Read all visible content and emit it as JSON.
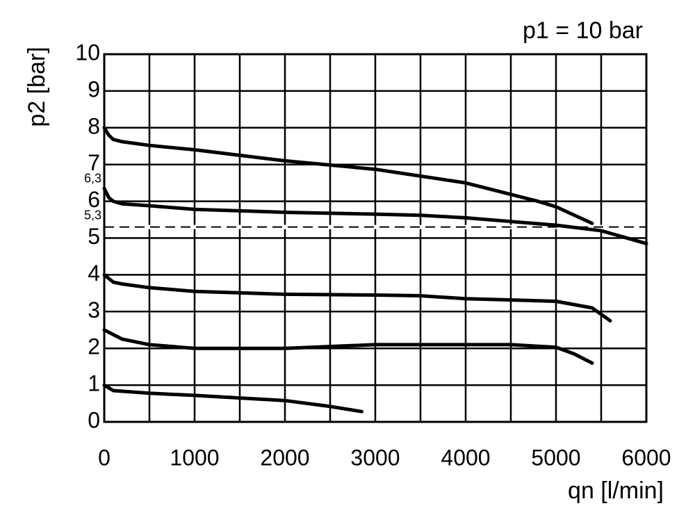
{
  "chart_data": {
    "type": "line",
    "title": "p1 = 10 bar",
    "x_label": "qn [l/min]",
    "y_label": "p2 [bar]",
    "xlim": [
      0,
      6000
    ],
    "ylim": [
      0,
      10
    ],
    "xticks": [
      0,
      1000,
      2000,
      3000,
      4000,
      5000,
      6000
    ],
    "x_minor_ticks": [
      500,
      1500,
      2500,
      3500,
      4500,
      5500
    ],
    "yticks": [
      0,
      1,
      2,
      3,
      4,
      5,
      6,
      7,
      8,
      9,
      10
    ],
    "grid": true,
    "reference_line": {
      "value": 5.3,
      "label": "5,3",
      "style": "dashed"
    },
    "annotations": [
      {
        "y": 6.3,
        "label": "6,3"
      }
    ],
    "series": [
      {
        "color": "#000000",
        "x": [
          0,
          50,
          100,
          200,
          500,
          1000,
          2000,
          3000,
          4000,
          4800,
          5000,
          5400
        ],
        "values": [
          8.0,
          7.8,
          7.68,
          7.62,
          7.52,
          7.4,
          7.1,
          6.87,
          6.5,
          6.0,
          5.85,
          5.4
        ]
      },
      {
        "color": "#000000",
        "x": [
          0,
          50,
          100,
          200,
          500,
          1000,
          2000,
          3000,
          3500,
          4000,
          4500,
          5000,
          5500,
          6000
        ],
        "values": [
          6.35,
          6.1,
          6.0,
          5.93,
          5.88,
          5.78,
          5.7,
          5.65,
          5.62,
          5.55,
          5.45,
          5.35,
          5.2,
          4.85
        ]
      },
      {
        "color": "#000000",
        "x": [
          0,
          100,
          200,
          500,
          1000,
          2000,
          3000,
          3500,
          4000,
          5000,
          5400,
          5600
        ],
        "values": [
          4.0,
          3.8,
          3.75,
          3.65,
          3.55,
          3.47,
          3.45,
          3.43,
          3.35,
          3.28,
          3.1,
          2.75
        ]
      },
      {
        "color": "#000000",
        "x": [
          0,
          200,
          500,
          1000,
          2000,
          3000,
          4000,
          4500,
          5000,
          5200,
          5400
        ],
        "values": [
          2.5,
          2.25,
          2.1,
          2.0,
          2.0,
          2.1,
          2.1,
          2.1,
          2.03,
          1.85,
          1.6
        ]
      },
      {
        "color": "#000000",
        "x": [
          0,
          100,
          500,
          1000,
          2000,
          2500,
          2850
        ],
        "values": [
          1.0,
          0.85,
          0.78,
          0.72,
          0.58,
          0.42,
          0.28
        ]
      }
    ]
  }
}
